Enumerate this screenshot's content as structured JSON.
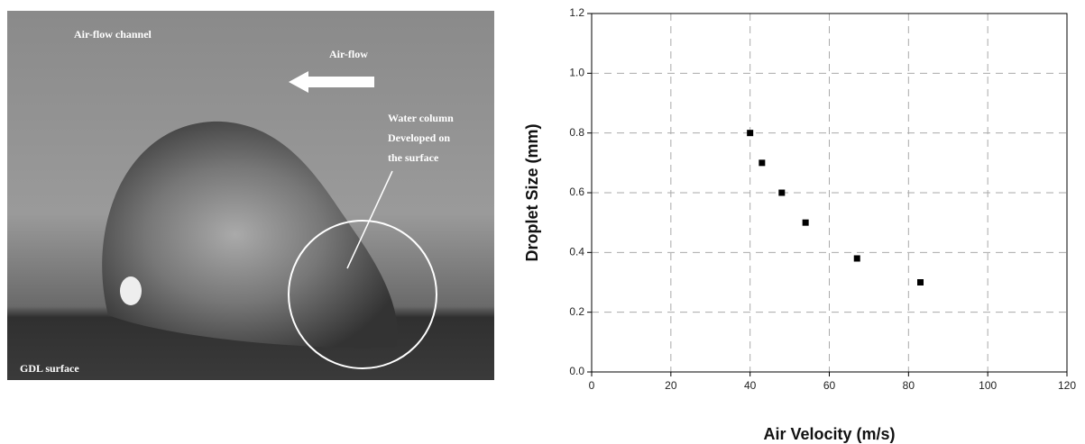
{
  "photo": {
    "channel_label": "Air-flow channel",
    "flow_label": "Air-flow",
    "column_label": [
      "Water column",
      "Developed on",
      "the surface"
    ],
    "surface_label": "GDL surface"
  },
  "chart_data": {
    "type": "scatter",
    "xlabel": "Air Velocity (m/s)",
    "ylabel": "Droplet Size (mm)",
    "series": [
      {
        "color": "#000000",
        "x": [
          40,
          43,
          48,
          54,
          67,
          83
        ],
        "values": [
          0.8,
          0.7,
          0.6,
          0.5,
          0.38,
          0.3
        ]
      }
    ],
    "xlim": [
      0,
      120
    ],
    "xticks": [
      0,
      20,
      40,
      60,
      80,
      100,
      120
    ],
    "ylim": [
      0,
      1.2
    ],
    "yticks": [
      {
        "value": 0,
        "label": "0.0"
      },
      0.2,
      0.4,
      0.6,
      0.8,
      {
        "value": 1,
        "label": "1.0"
      },
      1.2
    ],
    "grid": true
  }
}
